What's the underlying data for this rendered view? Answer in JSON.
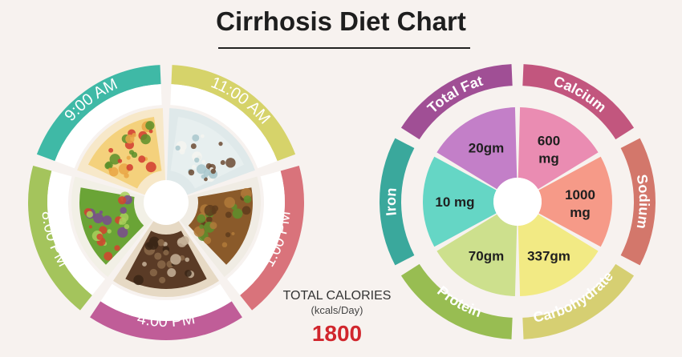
{
  "title": "Cirrhosis Diet Chart",
  "meal_times": [
    "9:00 AM",
    "11:00 AM",
    "1:00 PM",
    "4:00 PM",
    "8:00 PM"
  ],
  "meal_colors": [
    "#3fb9a6",
    "#d6d36a",
    "#d9737b",
    "#c05d98",
    "#a4c45c"
  ],
  "meal_foods": [
    {
      "name": "omelette-plate",
      "colors": [
        "#f4d17c",
        "#e9a645",
        "#d13b2f",
        "#5a8f2a",
        "#f7e8c9"
      ]
    },
    {
      "name": "coconut-water",
      "colors": [
        "#e7efef",
        "#a8c7cc",
        "#6b4a32",
        "#f5f5f0",
        "#dfe9ea"
      ]
    },
    {
      "name": "mince-curry",
      "colors": [
        "#8a5a2a",
        "#5e3c1c",
        "#b07a3a",
        "#5d8f2c",
        "#f0ece4"
      ]
    },
    {
      "name": "granola-bars",
      "colors": [
        "#5a3b26",
        "#8b6a4a",
        "#c7b39a",
        "#3a2616",
        "#e6d9c4"
      ]
    },
    {
      "name": "green-salad",
      "colors": [
        "#6aa436",
        "#d4432e",
        "#a9cf5a",
        "#7a4b8f",
        "#f2f0e6"
      ]
    }
  ],
  "nutrients": [
    {
      "label": "Total Fat",
      "value": "20gm",
      "ring_color": "#a04f95",
      "fill_color": "#c37fc8"
    },
    {
      "label": "Calcium",
      "value": "600 mg",
      "ring_color": "#c2567e",
      "fill_color": "#ea8cb2"
    },
    {
      "label": "Sodium",
      "value": "1000 mg",
      "ring_color": "#d3776b",
      "fill_color": "#f69a88"
    },
    {
      "label": "Carbohydrate",
      "value": "337gm",
      "ring_color": "#d6cf72",
      "fill_color": "#f2ea84"
    },
    {
      "label": "Protein",
      "value": "70gm",
      "ring_color": "#98bd52",
      "fill_color": "#cde08d"
    },
    {
      "label": "Iron",
      "value": "10 mg",
      "ring_color": "#3aa89c",
      "fill_color": "#65d6c5"
    }
  ],
  "calories": {
    "label": "TOTAL CALORIES",
    "unit": "(kcals/Day)",
    "value": "1800"
  }
}
